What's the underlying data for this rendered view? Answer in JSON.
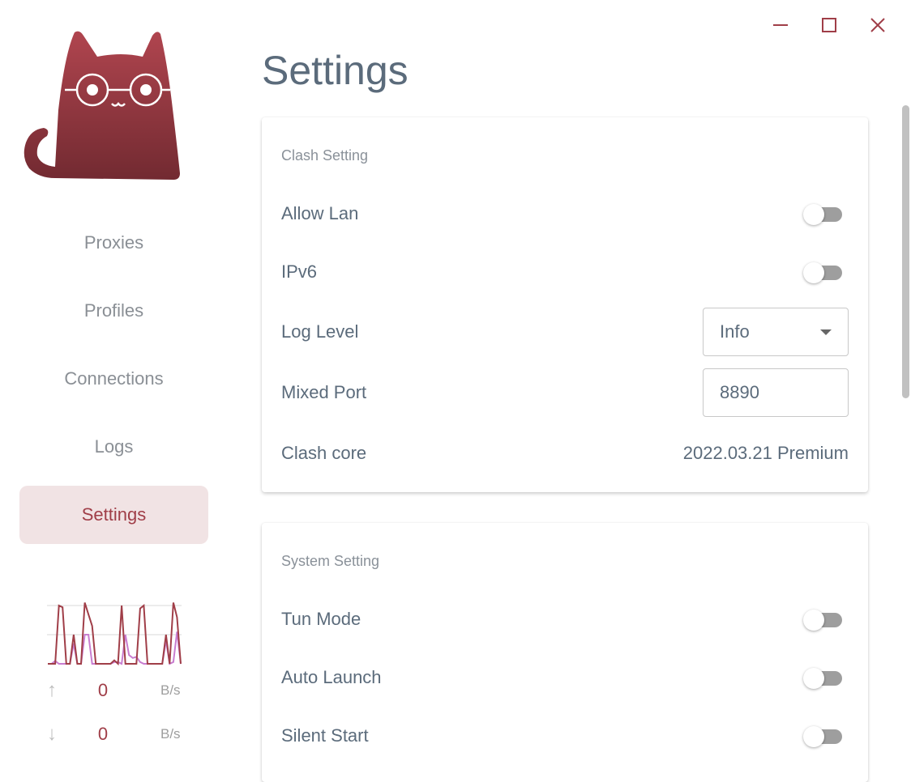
{
  "window": {
    "minimize_icon": "minimize-icon",
    "maximize_icon": "maximize-icon",
    "close_icon": "close-icon",
    "accent": "#a03e48"
  },
  "sidebar": {
    "logo": "clash-cat-logo",
    "items": [
      {
        "label": "Proxies"
      },
      {
        "label": "Profiles"
      },
      {
        "label": "Connections"
      },
      {
        "label": "Logs"
      },
      {
        "label": "Settings",
        "active": true
      }
    ],
    "traffic": {
      "upload_series": [
        0,
        0,
        0,
        1,
        0.97,
        0,
        0,
        0.5,
        0,
        0,
        1.05,
        0.85,
        0.65,
        0,
        0,
        0,
        0,
        0,
        0.06,
        0,
        1,
        0,
        0,
        0,
        0,
        0.95,
        1,
        0,
        0,
        0,
        0,
        0,
        0.5,
        0,
        1.05,
        0.8,
        0
      ],
      "download_series": [
        0,
        0,
        0.05,
        0,
        0,
        0,
        0,
        0.35,
        0,
        0,
        0.5,
        0.5,
        0,
        0,
        0,
        0,
        0,
        0,
        0.03,
        0.03,
        0,
        0.5,
        0.15,
        0.1,
        0.12,
        0.03,
        0,
        0,
        0,
        0,
        0,
        0,
        0.4,
        0,
        0.03,
        0.55,
        0
      ],
      "upload_color": "#a03e48",
      "download_color": "#c87dd0",
      "up": {
        "icon": "arrow-up-icon",
        "value": "0",
        "unit": "B/s"
      },
      "down": {
        "icon": "arrow-down-icon",
        "value": "0",
        "unit": "B/s"
      }
    }
  },
  "main": {
    "title": "Settings",
    "clash": {
      "title": "Clash Setting",
      "allow_lan": {
        "label": "Allow Lan",
        "on": false
      },
      "ipv6": {
        "label": "IPv6",
        "on": false
      },
      "log_level": {
        "label": "Log Level",
        "value": "Info"
      },
      "mixed_port": {
        "label": "Mixed Port",
        "value": "8890"
      },
      "core": {
        "label": "Clash core",
        "value": "2022.03.21 Premium"
      }
    },
    "system": {
      "title": "System Setting",
      "tun": {
        "label": "Tun Mode",
        "on": false
      },
      "auto_launch": {
        "label": "Auto Launch",
        "on": false
      },
      "silent_start": {
        "label": "Silent Start",
        "on": false
      }
    }
  }
}
